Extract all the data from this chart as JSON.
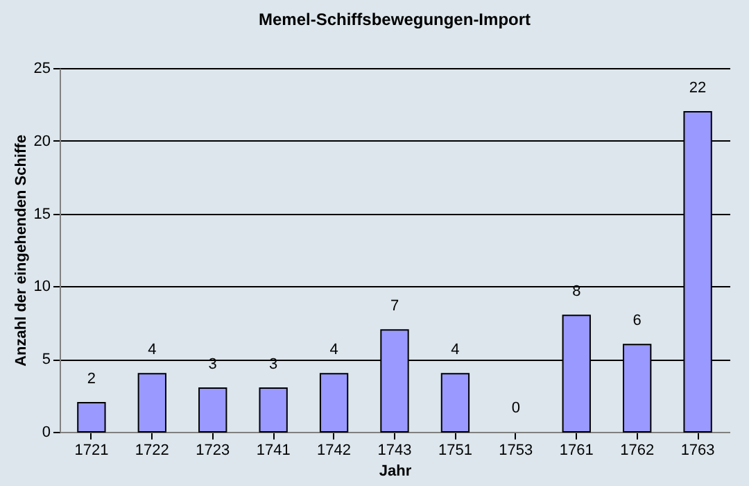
{
  "chart_data": {
    "type": "bar",
    "title": "Memel-Schiffsbewegungen-Import",
    "xlabel": "Jahr",
    "ylabel": "Anzahl der eingehenden Schiffe",
    "categories": [
      "1721",
      "1722",
      "1723",
      "1741",
      "1742",
      "1743",
      "1751",
      "1753",
      "1761",
      "1762",
      "1763"
    ],
    "values": [
      2,
      4,
      3,
      3,
      4,
      7,
      4,
      0,
      8,
      6,
      22
    ],
    "color": "#9999ff",
    "ylim": [
      0,
      25
    ],
    "yticks": [
      0,
      5,
      10,
      15,
      20,
      25
    ],
    "grid": "y",
    "data_labels": true
  }
}
